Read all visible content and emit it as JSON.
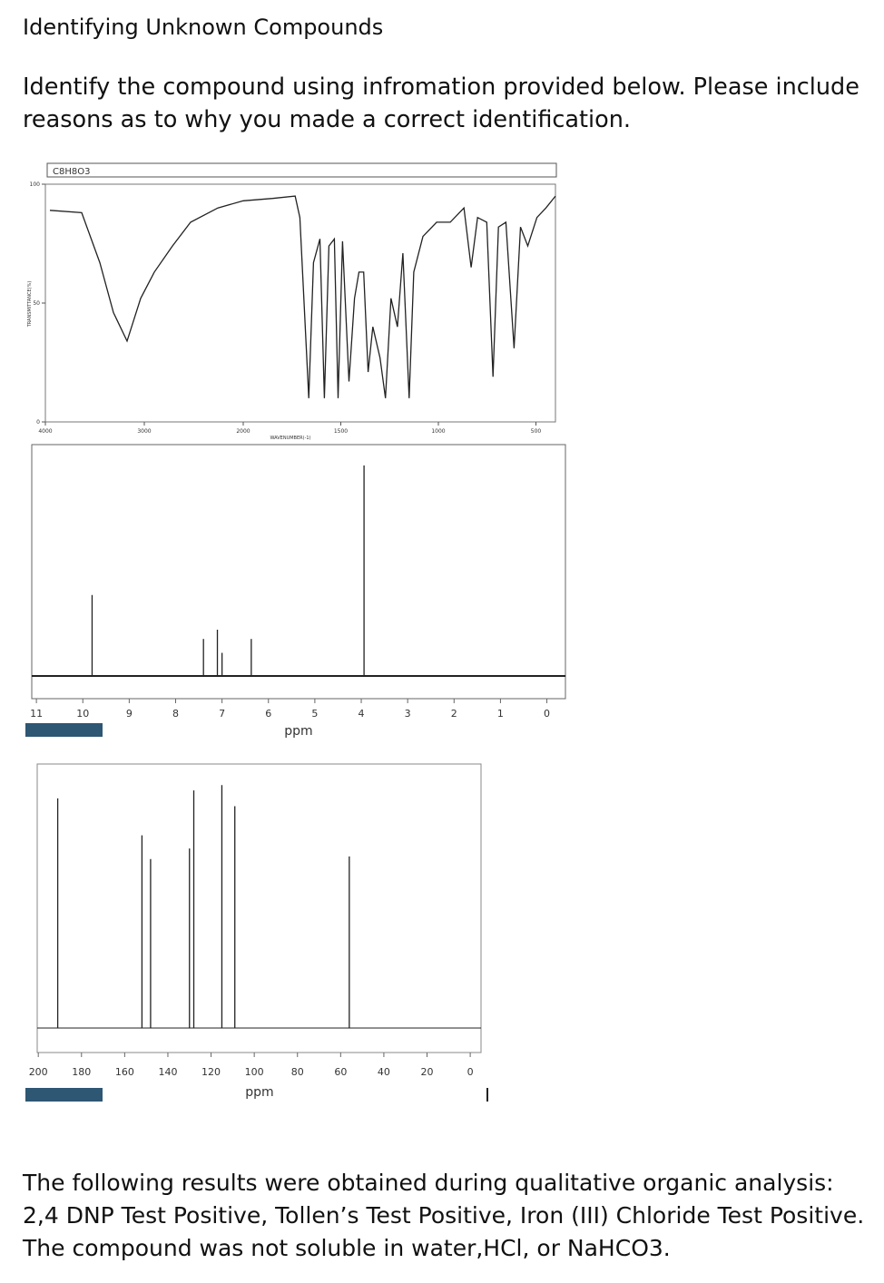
{
  "header": {
    "title": "Identifying Unknown Compounds"
  },
  "question": "Identify the compound using infromation provided below. Please include reasons as to why you made a correct identification.",
  "ir": {
    "formula": "C8H8O3",
    "y_label": "TRANSMITTANCE(%)",
    "x_label": "WAVENUMBER(-1)",
    "xlim": [
      4000,
      400
    ],
    "scale_break": 2000,
    "xticks": [
      4000,
      3000,
      2000,
      1500,
      1000,
      500
    ],
    "ylim": [
      0,
      100
    ],
    "yticks": [
      0,
      50,
      100
    ],
    "x": [
      3954,
      3633,
      3450,
      3312,
      3174,
      3037,
      2899,
      2716,
      2532,
      2257,
      2000,
      1850,
      1734,
      1710,
      1664,
      1640,
      1607,
      1584,
      1561,
      1533,
      1514,
      1491,
      1458,
      1430,
      1407,
      1383,
      1360,
      1336,
      1299,
      1271,
      1243,
      1210,
      1182,
      1150,
      1126,
      1079,
      1009,
      939,
      869,
      832,
      799,
      752,
      720,
      692,
      654,
      612,
      579,
      542,
      495,
      449,
      400
    ],
    "y": [
      89,
      88,
      67,
      46,
      34,
      52,
      63,
      74,
      84,
      90,
      93,
      94,
      95,
      86,
      10,
      67,
      77,
      10,
      74,
      77,
      10,
      76,
      17,
      52,
      63,
      63,
      21,
      40,
      27,
      10,
      52,
      40,
      71,
      10,
      63,
      78,
      84,
      84,
      90,
      65,
      86,
      84,
      19,
      82,
      84,
      31,
      82,
      74,
      86,
      90,
      95
    ]
  },
  "h1": {
    "x_label": "ppm",
    "xlim": [
      11.1,
      -0.4
    ],
    "xticks": [
      11,
      10,
      9,
      8,
      7,
      6,
      5,
      4,
      3,
      2,
      1,
      0
    ],
    "ppm": [
      9.8,
      7.4,
      7.1,
      7.0,
      6.37,
      3.94
    ],
    "height": [
      35,
      16,
      20,
      10,
      16,
      91
    ]
  },
  "c13": {
    "x_label": "ppm",
    "xlim": [
      200.5,
      -5
    ],
    "xticks": [
      200,
      180,
      160,
      140,
      120,
      100,
      80,
      60,
      40,
      20,
      0
    ],
    "ppm": [
      191,
      152,
      148,
      130,
      128,
      115,
      109,
      56
    ],
    "height": [
      87,
      73,
      64,
      68,
      90,
      92,
      84,
      65
    ]
  },
  "results": "The following results were obtained during qualitative organic analysis: 2,4 DNP Test Positive, Tollen’s Test Positive, Iron (III) Chloride Test Positive. The compound was not soluble in water,HCl, or NaHCO3."
}
